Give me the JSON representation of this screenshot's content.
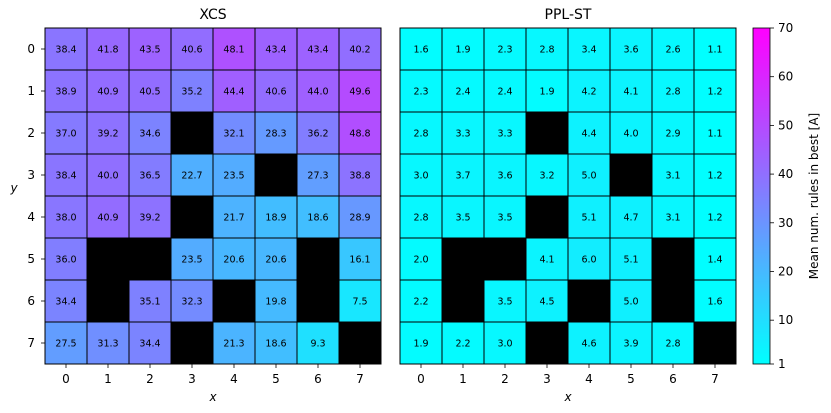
{
  "chart_data": [
    {
      "type": "heatmap",
      "title": "XCS",
      "xlabel": "x",
      "ylabel": "y",
      "x": [
        0,
        1,
        2,
        3,
        4,
        5,
        6,
        7
      ],
      "y": [
        0,
        1,
        2,
        3,
        4,
        5,
        6,
        7
      ],
      "values": [
        [
          38.4,
          41.8,
          43.5,
          40.6,
          48.1,
          43.4,
          43.4,
          40.2
        ],
        [
          38.9,
          40.9,
          40.5,
          35.2,
          44.4,
          40.6,
          44.0,
          49.6
        ],
        [
          37.0,
          39.2,
          34.6,
          null,
          32.1,
          28.3,
          36.2,
          48.8
        ],
        [
          38.4,
          40.0,
          36.5,
          22.7,
          23.5,
          null,
          27.3,
          38.8
        ],
        [
          38.0,
          40.9,
          39.2,
          null,
          21.7,
          18.9,
          18.6,
          28.9
        ],
        [
          36.0,
          null,
          null,
          23.5,
          20.6,
          20.6,
          null,
          16.1
        ],
        [
          34.4,
          null,
          35.1,
          32.3,
          null,
          19.8,
          null,
          7.5
        ],
        [
          27.5,
          31.3,
          34.4,
          null,
          21.3,
          18.6,
          9.3,
          null
        ]
      ]
    },
    {
      "type": "heatmap",
      "title": "PPL-ST",
      "xlabel": "x",
      "x": [
        0,
        1,
        2,
        3,
        4,
        5,
        6,
        7
      ],
      "y": [
        0,
        1,
        2,
        3,
        4,
        5,
        6,
        7
      ],
      "values": [
        [
          1.6,
          1.9,
          2.3,
          2.8,
          3.4,
          3.6,
          2.6,
          1.1
        ],
        [
          2.3,
          2.4,
          2.4,
          1.9,
          4.2,
          4.1,
          2.8,
          1.2
        ],
        [
          2.8,
          3.3,
          3.3,
          null,
          4.4,
          4.0,
          2.9,
          1.1
        ],
        [
          3.0,
          3.7,
          3.6,
          3.2,
          5.0,
          null,
          3.1,
          1.2
        ],
        [
          2.8,
          3.5,
          3.5,
          null,
          5.1,
          4.7,
          3.1,
          1.2
        ],
        [
          2.0,
          null,
          null,
          4.1,
          6.0,
          5.1,
          null,
          1.4
        ],
        [
          2.2,
          null,
          3.5,
          4.5,
          null,
          5.0,
          null,
          1.6
        ],
        [
          1.9,
          2.2,
          3.0,
          null,
          4.6,
          3.9,
          2.8,
          null
        ]
      ]
    }
  ],
  "colorbar": {
    "label": "Mean num. rules in best [A]",
    "range": [
      1,
      70
    ],
    "ticks": [
      1,
      10,
      20,
      30,
      40,
      50,
      60,
      70
    ],
    "colormap": "cool",
    "color_low": "#00ffff",
    "color_high": "#ff00ff"
  },
  "obstacle_color": "#000000"
}
